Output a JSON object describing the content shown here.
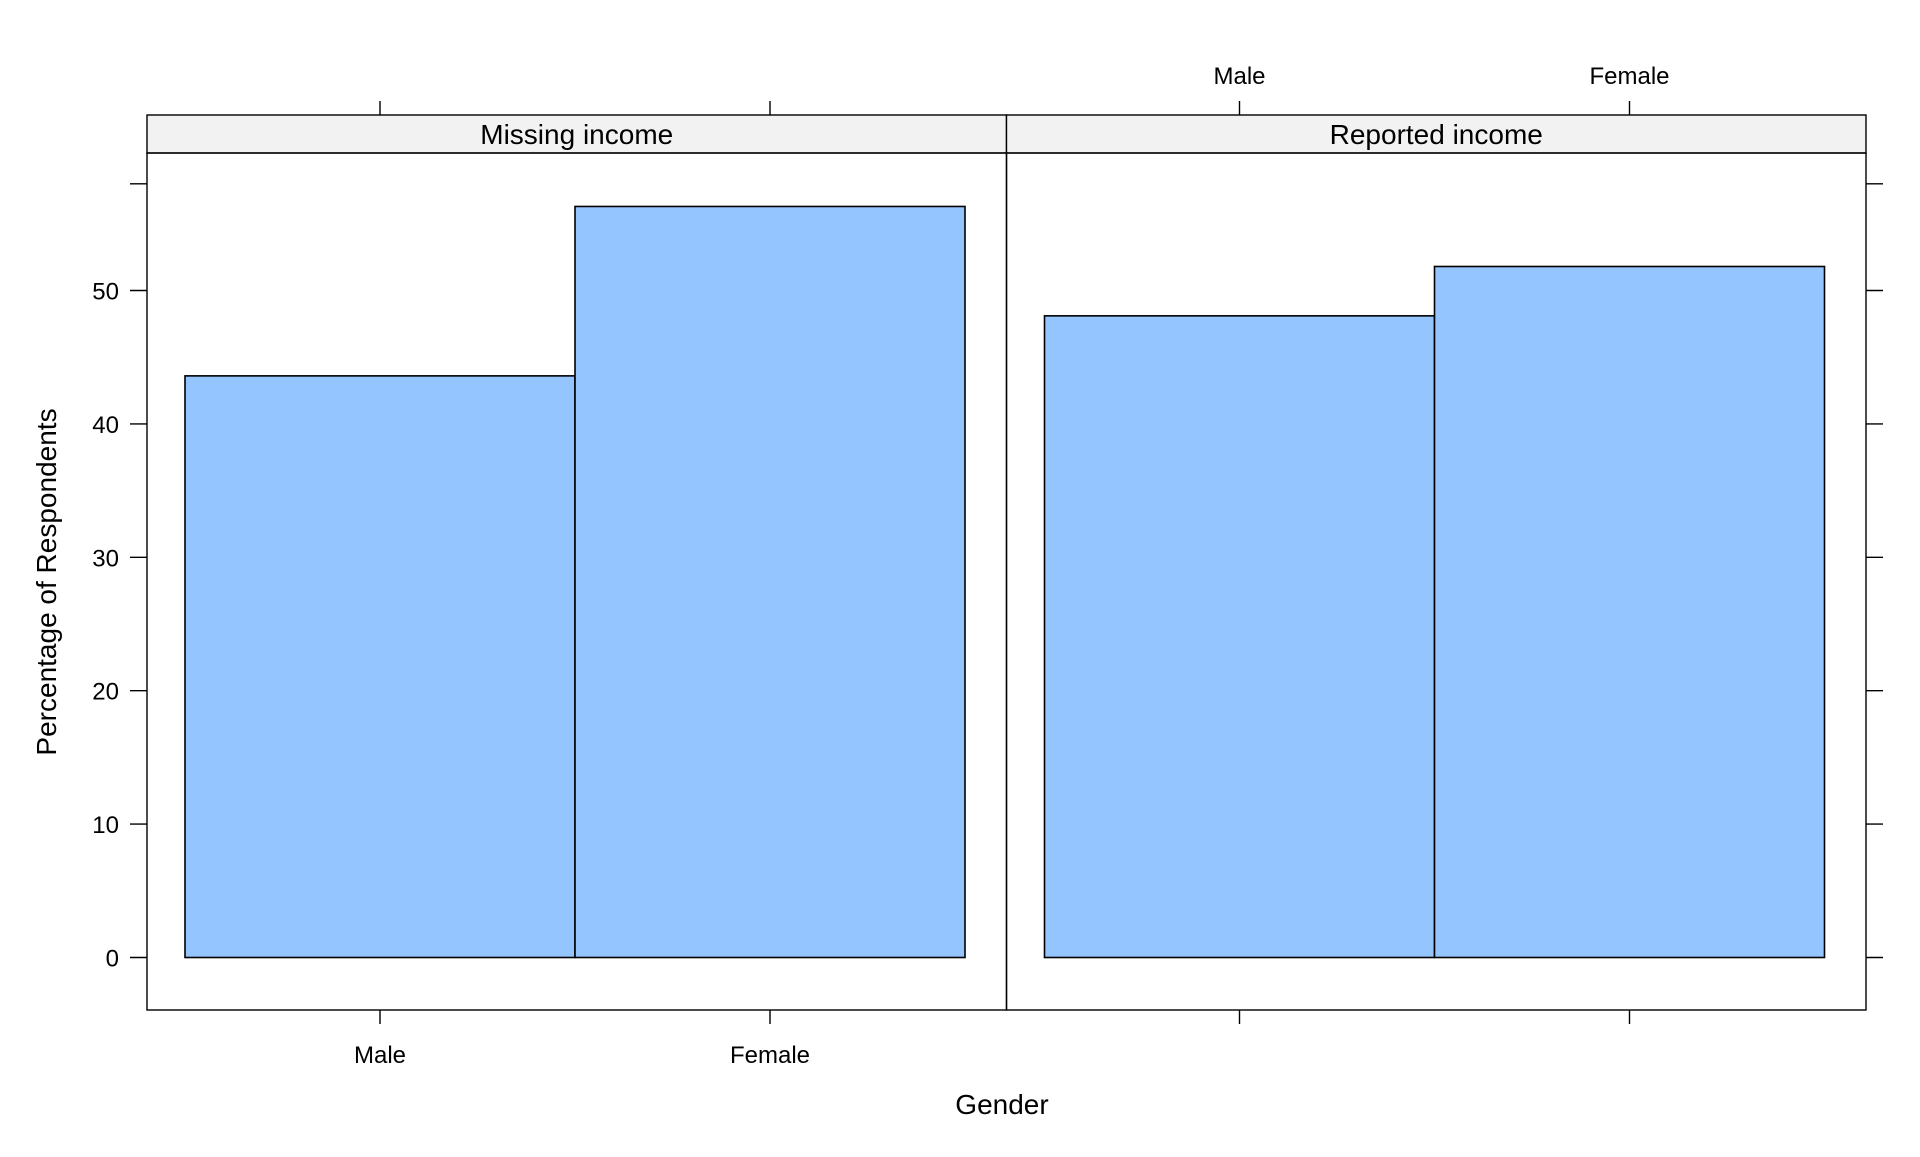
{
  "chart_data": {
    "type": "bar",
    "xlabel": "Gender",
    "ylabel": "Percentage of Respondents",
    "ylim": [
      -4,
      60
    ],
    "yticks": [
      0,
      10,
      20,
      30,
      40,
      50
    ],
    "categories": [
      "Male",
      "Female"
    ],
    "bar_color": "#94c5ff",
    "strip_color": "#f2f2f2",
    "grid": false,
    "panels": [
      {
        "name": "Missing income",
        "values": [
          43.6,
          56.3
        ]
      },
      {
        "name": "Reported income",
        "values": [
          48.1,
          51.8
        ]
      }
    ]
  }
}
